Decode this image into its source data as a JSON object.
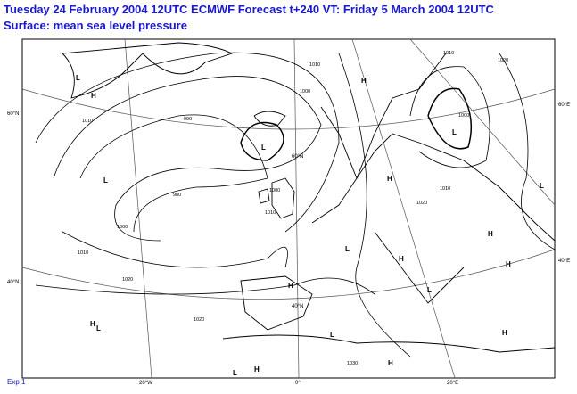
{
  "header": {
    "title": "Tuesday 24 February 2004 12UTC ECMWF Forecast t+240  VT: Friday 5 March 2004 12UTC",
    "subtitle": "Surface:  mean sea level pressure"
  },
  "footer": "Exp 1",
  "grid_labels": [
    "60°N",
    "40°N",
    "60°E",
    "40°E",
    "20°W",
    "0°",
    "20°E",
    "60°N",
    "40°N"
  ],
  "centers": [
    "L",
    "H",
    "L",
    "L",
    "H",
    "L",
    "H",
    "H",
    "L",
    "H",
    "L",
    "H",
    "H",
    "L",
    "H",
    "L",
    "L",
    "H",
    "L",
    "H",
    "H"
  ],
  "isobar_labels": [
    "1010",
    "990",
    "1000",
    "1010",
    "980",
    "1000",
    "1010",
    "1000",
    "1010",
    "1020",
    "1020",
    "1030",
    "1020",
    "1000",
    "1010",
    "1010",
    "1020"
  ]
}
